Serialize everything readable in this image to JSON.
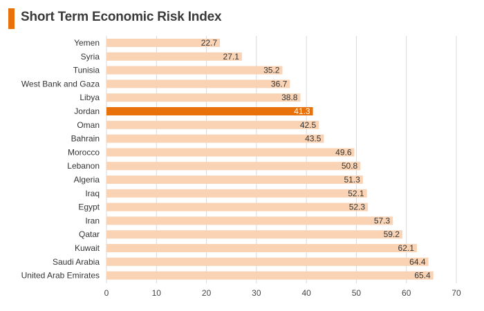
{
  "header": {
    "title": "Short Term Economic Risk Index"
  },
  "colors": {
    "accent": "#e8710a",
    "bar_default": "#f9d3b4",
    "bar_highlight": "#e8710a",
    "gridline": "#d9d9d9",
    "title_text": "#3a3a3a"
  },
  "chart_data": {
    "type": "bar",
    "orientation": "horizontal",
    "title": "Short Term Economic Risk Index",
    "xlabel": "",
    "ylabel": "",
    "xlim": [
      0,
      70
    ],
    "x_ticks": [
      0,
      10,
      20,
      30,
      40,
      50,
      60,
      70
    ],
    "grid": "vertical",
    "legend": "none",
    "highlight_category": "Jordan",
    "categories": [
      "Yemen",
      "Syria",
      "Tunisia",
      "West Bank and Gaza",
      "Libya",
      "Jordan",
      "Oman",
      "Bahrain",
      "Morocco",
      "Lebanon",
      "Algeria",
      "Iraq",
      "Egypt",
      "Iran",
      "Qatar",
      "Kuwait",
      "Saudi Arabia",
      "United Arab Emirates"
    ],
    "values": [
      22.7,
      27.1,
      35.2,
      36.7,
      38.8,
      41.3,
      42.5,
      43.5,
      49.6,
      50.8,
      51.3,
      52.1,
      52.3,
      57.3,
      59.2,
      62.1,
      64.4,
      65.4
    ],
    "value_labels": [
      "22.7",
      "27.1",
      "35.2",
      "36.7",
      "38.8",
      "41.3",
      "42.5",
      "43.5",
      "49.6",
      "50.8",
      "51.3",
      "52.1",
      "52.3",
      "57.3",
      "59.2",
      "62.1",
      "64.4",
      "65.4"
    ],
    "tick_labels": [
      "0",
      "10",
      "20",
      "30",
      "40",
      "50",
      "60",
      "70"
    ]
  }
}
